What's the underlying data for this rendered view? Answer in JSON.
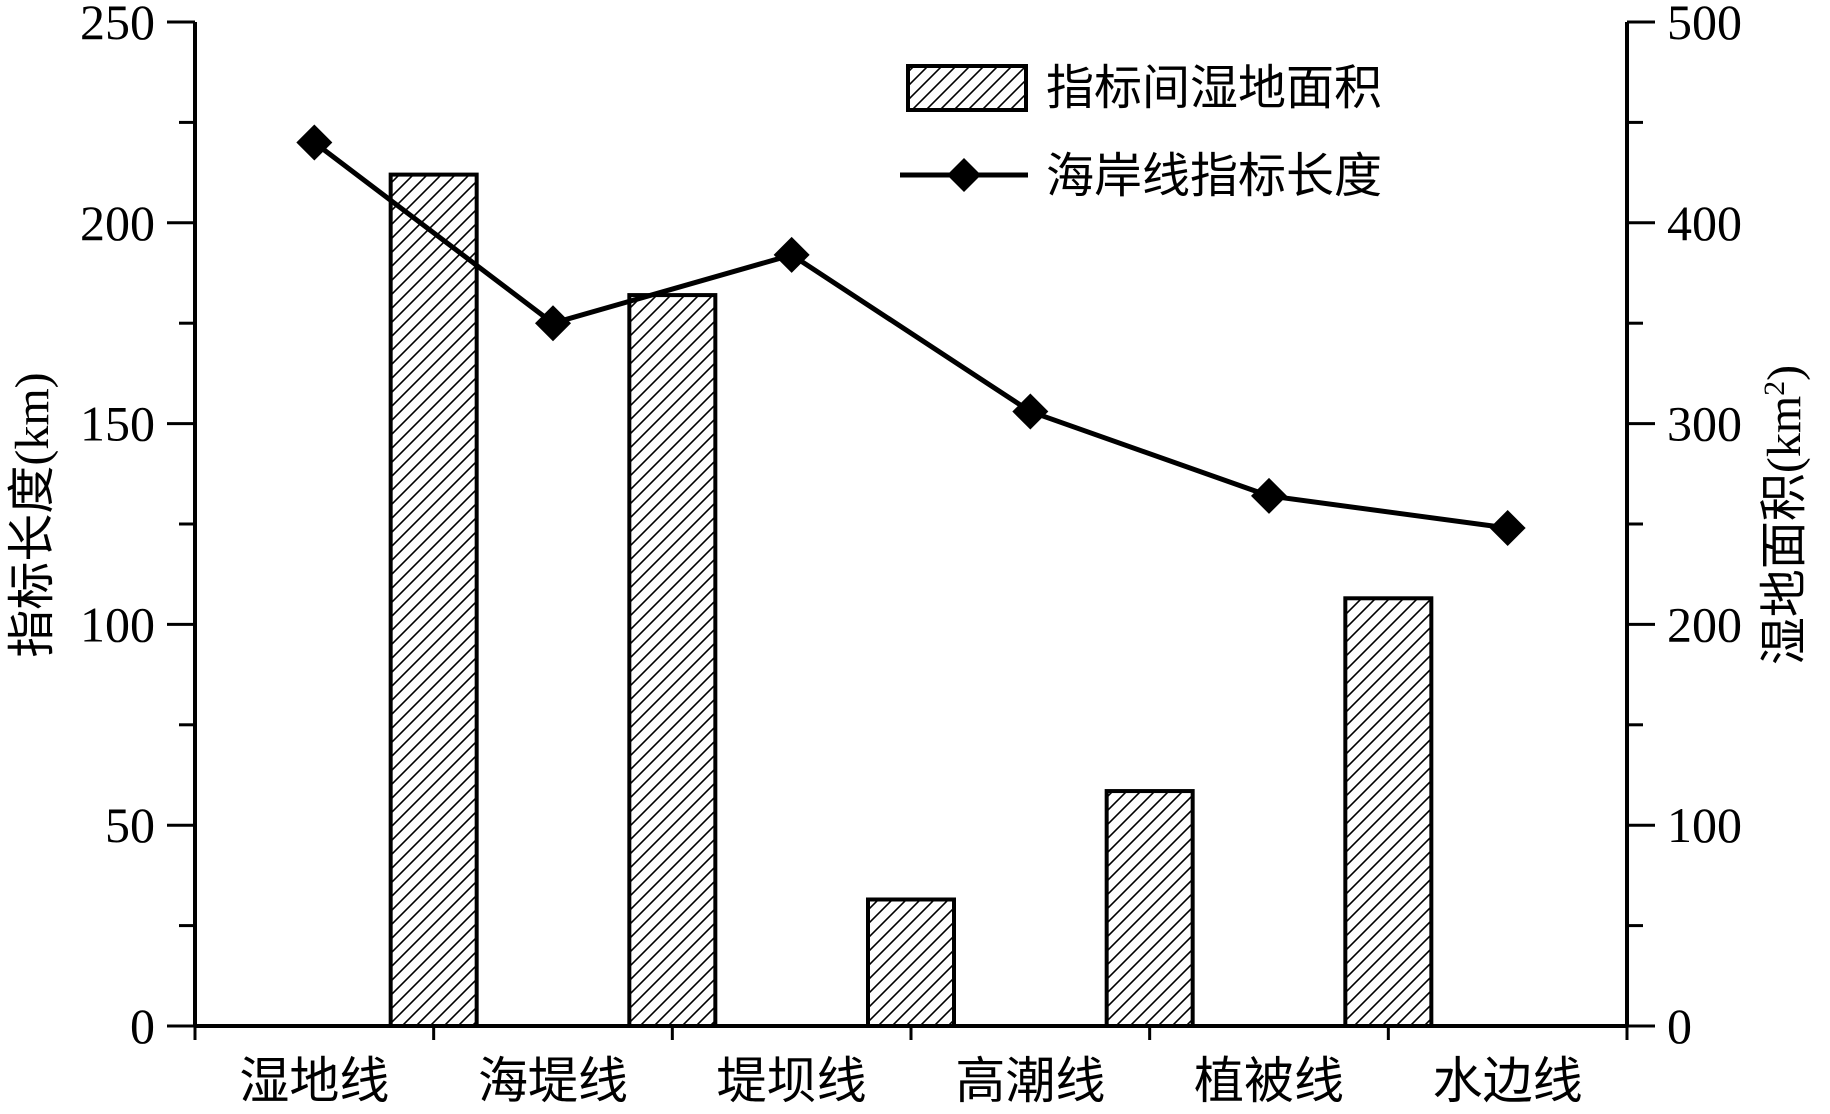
{
  "chart_data": {
    "type": "bar+line",
    "categories": [
      "湿地线",
      "海堤线",
      "堤坝线",
      "高潮线",
      "植被线",
      "水边线"
    ],
    "series": [
      {
        "name": "指标间湿地面积",
        "type": "bar",
        "axis": "right",
        "values_between_categories": [
          424,
          364,
          63,
          117,
          213
        ],
        "pattern": "diagonal-hatch"
      },
      {
        "name": "海岸线指标长度",
        "type": "line",
        "axis": "left",
        "values": [
          220,
          175,
          192,
          153,
          132,
          124
        ],
        "marker": "diamond"
      }
    ],
    "left_axis": {
      "label": "指标长度(km)",
      "ylim": [
        0,
        250
      ],
      "ticks": [
        "0",
        "50",
        "100",
        "150",
        "200",
        "250"
      ]
    },
    "right_axis": {
      "label_main": "湿地面积(km",
      "label_sup": "2",
      "label_close": ")",
      "ylim": [
        0,
        500
      ],
      "ticks": [
        "0",
        "100",
        "200",
        "300",
        "400",
        "500"
      ]
    },
    "legend": {
      "placement": "top-right",
      "bar_label": "指标间湿地面积",
      "line_label": "海岸线指标长度"
    },
    "grid": false,
    "colors": {
      "line": "#000000",
      "bar_stroke": "#000000",
      "bar_fill": "#ffffff"
    }
  }
}
